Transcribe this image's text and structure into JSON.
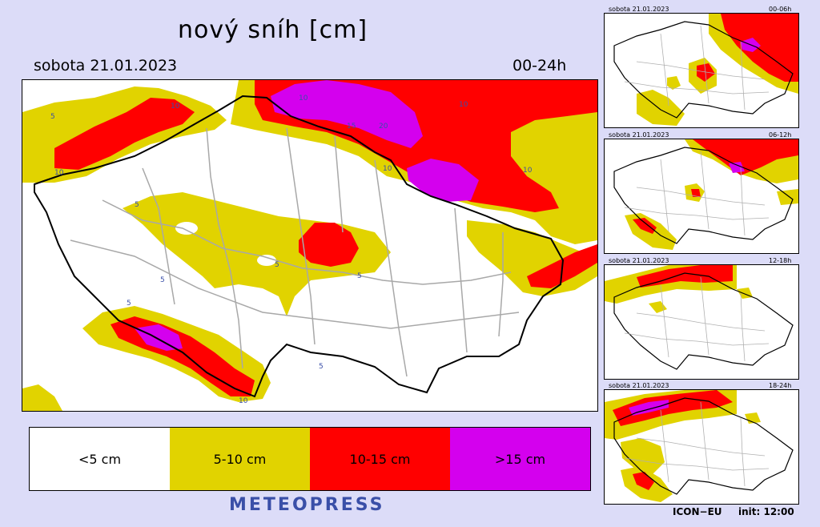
{
  "title": "nový sníh [cm]",
  "main": {
    "date": "sobota 21.01.2023",
    "period": "00-24h",
    "contour_labels": [
      "5",
      "10",
      "15",
      "20"
    ]
  },
  "legend": {
    "items": [
      {
        "label": "<5 cm",
        "color": "#ffffff"
      },
      {
        "label": "5-10 cm",
        "color": "#e1d300"
      },
      {
        "label": "10-15 cm",
        "color": "#ff0000"
      },
      {
        "label": ">15 cm",
        "color": "#d400ee"
      }
    ]
  },
  "logo": "METEOPRESS",
  "thumbnails": [
    {
      "date": "sobota 21.01.2023",
      "period": "00-06h"
    },
    {
      "date": "sobota 21.01.2023",
      "period": "06-12h"
    },
    {
      "date": "sobota 21.01.2023",
      "period": "12-18h"
    },
    {
      "date": "sobota 21.01.2023",
      "period": "18-24h"
    }
  ],
  "footer": {
    "model": "ICON−EU",
    "init": "init:  12:00"
  },
  "colors": {
    "background": "#dcdcf8",
    "yellow": "#e1d300",
    "red": "#ff0000",
    "magenta": "#d400ee",
    "logo": "#3a4fa8"
  }
}
